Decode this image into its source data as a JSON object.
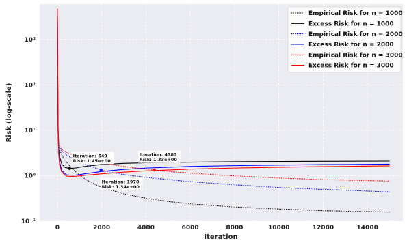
{
  "chart_data": {
    "type": "line",
    "title": "",
    "xlabel": "Iteration",
    "ylabel": "Risk (log-scale)",
    "yscale": "log",
    "xlim": [
      -800,
      15600
    ],
    "ylim": [
      0.1,
      6000
    ],
    "x_ticks": [
      0,
      2000,
      4000,
      6000,
      8000,
      10000,
      12000,
      14000
    ],
    "y_ticks": [
      0.1,
      1,
      10,
      100,
      1000
    ],
    "y_tick_labels": [
      "10⁻¹",
      "10⁰",
      "10¹",
      "10²",
      "10³"
    ],
    "grid": true,
    "legend_position": "top-right",
    "series": [
      {
        "name": "Empirical Risk for n = 1000",
        "color": "#000000",
        "dash": "dotted",
        "x": [
          0,
          30,
          60,
          100,
          200,
          300,
          500,
          800,
          1200,
          1600,
          2000,
          3000,
          4000,
          5000,
          6000,
          8000,
          10000,
          12000,
          15000
        ],
        "y": [
          4800,
          14,
          4.6,
          3.7,
          2.85,
          2.35,
          1.75,
          1.25,
          0.88,
          0.68,
          0.55,
          0.4,
          0.32,
          0.27,
          0.24,
          0.205,
          0.185,
          0.17,
          0.158
        ]
      },
      {
        "name": "Excess Risk for n = 1000",
        "color": "#000000",
        "dash": "solid",
        "x": [
          0,
          30,
          60,
          100,
          200,
          350,
          549,
          800,
          1200,
          2000,
          3000,
          4000,
          6000,
          8000,
          10000,
          12000,
          15000
        ],
        "y": [
          4800,
          12,
          4.0,
          2.6,
          1.8,
          1.52,
          1.45,
          1.48,
          1.6,
          1.77,
          1.87,
          1.93,
          1.99,
          2.03,
          2.06,
          2.08,
          2.1
        ]
      },
      {
        "name": "Empirical Risk for n = 2000",
        "color": "#0000ff",
        "dash": "dotted",
        "x": [
          0,
          30,
          60,
          100,
          200,
          400,
          700,
          1000,
          1500,
          1970,
          2500,
          3000,
          4000,
          5000,
          6000,
          8000,
          10000,
          12000,
          15000
        ],
        "y": [
          4800,
          14,
          4.8,
          4.1,
          3.5,
          2.9,
          2.35,
          2.0,
          1.6,
          1.34,
          1.17,
          1.06,
          0.92,
          0.82,
          0.74,
          0.63,
          0.55,
          0.5,
          0.44
        ]
      },
      {
        "name": "Excess Risk for n = 2000",
        "color": "#0000ff",
        "dash": "solid",
        "x": [
          0,
          30,
          60,
          100,
          200,
          400,
          700,
          1000,
          1500,
          2000,
          3000,
          4000,
          6000,
          8000,
          10000,
          12000,
          15000
        ],
        "y": [
          4800,
          10,
          3.5,
          2.0,
          1.3,
          1.05,
          1.02,
          1.06,
          1.15,
          1.24,
          1.38,
          1.48,
          1.6,
          1.67,
          1.72,
          1.76,
          1.8
        ]
      },
      {
        "name": "Empirical Risk for n = 3000",
        "color": "#ff0000",
        "dash": "dotted",
        "x": [
          0,
          30,
          60,
          100,
          200,
          500,
          1000,
          1500,
          2000,
          3000,
          4383,
          5000,
          6000,
          8000,
          10000,
          12000,
          15000
        ],
        "y": [
          4800,
          14,
          5.0,
          4.4,
          3.8,
          3.1,
          2.5,
          2.15,
          1.92,
          1.6,
          1.33,
          1.24,
          1.14,
          0.99,
          0.89,
          0.82,
          0.76
        ]
      },
      {
        "name": "Excess Risk for n = 3000",
        "color": "#ff0000",
        "dash": "solid",
        "x": [
          0,
          30,
          60,
          100,
          200,
          400,
          700,
          1000,
          1500,
          2000,
          3000,
          4000,
          6000,
          8000,
          10000,
          12000,
          15000
        ],
        "y": [
          4800,
          9,
          3.0,
          1.7,
          1.2,
          0.98,
          0.96,
          0.99,
          1.05,
          1.1,
          1.2,
          1.28,
          1.4,
          1.48,
          1.54,
          1.59,
          1.65
        ]
      }
    ],
    "markers": [
      {
        "x": 549,
        "y": 1.45,
        "color": "#000000"
      },
      {
        "x": 1970,
        "y": 1.34,
        "color": "#0000ff"
      },
      {
        "x": 4383,
        "y": 1.33,
        "color": "#ff0000"
      }
    ],
    "annotations": [
      {
        "lines": [
          "Iteration: 549",
          "Risk: 1.45e+00"
        ],
        "x": 700,
        "y": 2.55,
        "anchor": "start"
      },
      {
        "lines": [
          "Iteration: 4383",
          "Risk: 1.33e+00"
        ],
        "x": 3700,
        "y": 2.7,
        "anchor": "start"
      },
      {
        "lines": [
          "Iteration: 1970",
          "Risk: 1.34e+00"
        ],
        "x": 2000,
        "y": 0.68,
        "anchor": "start"
      }
    ]
  }
}
